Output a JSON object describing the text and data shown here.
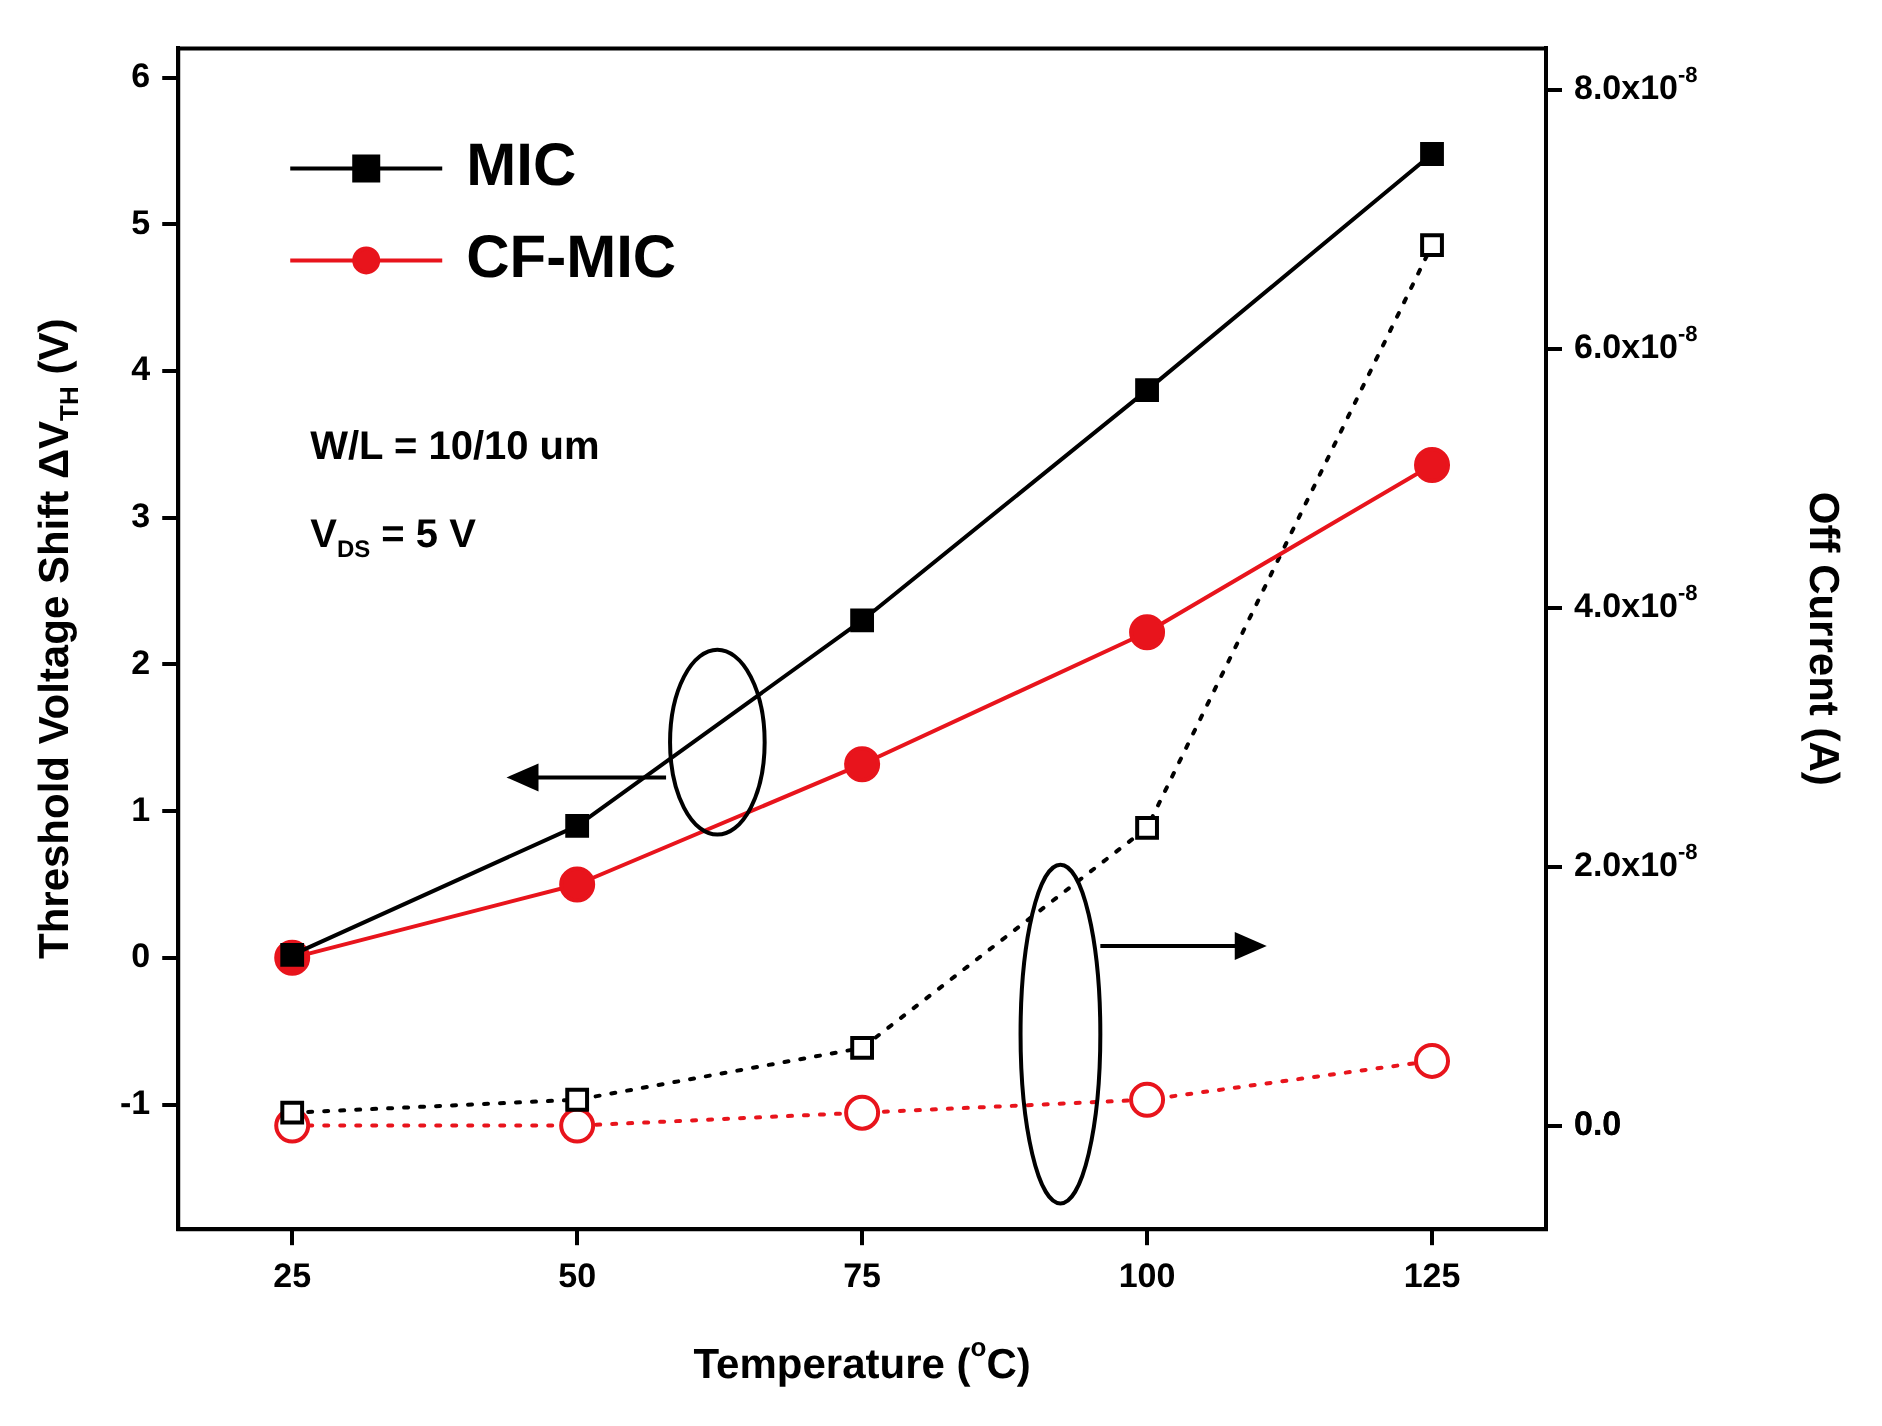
{
  "chart_data": {
    "type": "line",
    "xlabel": "Temperature ($^{o}$C)",
    "ylabel": "Threshold Voltage Shift ΔV$_{TH}$ (V)",
    "y2label": "Off Current (A)",
    "x": [
      25,
      50,
      75,
      100,
      125
    ],
    "xlim": [
      15,
      135
    ],
    "xticks": [
      25,
      50,
      75,
      100,
      125
    ],
    "ylim": [
      -1.85,
      6.2
    ],
    "yticks": [
      -1,
      0,
      1,
      2,
      3,
      4,
      5,
      6
    ],
    "y2lim": [
      -8e-09,
      8.32e-08
    ],
    "y2ticks": [
      {
        "value": 0,
        "label": "0.0"
      },
      {
        "value": 2e-08,
        "label": "2.0x10$^{-8}$"
      },
      {
        "value": 4e-08,
        "label": "4.0x10$^{-8}$"
      },
      {
        "value": 6e-08,
        "label": "6.0x10$^{-8}$"
      },
      {
        "value": 8e-08,
        "label": "8.0x10$^{-8}$"
      }
    ],
    "legend": "top left",
    "annotations": [
      "W/L = 10/10 um",
      "V$_{DS}$ = 5 V"
    ],
    "series": [
      {
        "name": "MIC",
        "color": "#000000",
        "marker": "square",
        "line_style": "solid",
        "values": [
          0.02,
          0.9,
          2.3,
          3.87,
          5.48
        ]
      },
      {
        "name": "CF-MIC",
        "color": "#e8141c",
        "marker": "circle",
        "line_style": "solid",
        "values": [
          0.0,
          0.5,
          1.32,
          2.22,
          3.36
        ]
      },
      {
        "color": "#000000",
        "marker": "square",
        "line_style": "dotted",
        "axis": "y2",
        "values": [
          1e-09,
          2e-09,
          6e-09,
          2.3e-08,
          6.8e-08
        ]
      },
      {
        "color": "#e8141c",
        "marker": "circle",
        "line_style": "dotted",
        "axis": "y2",
        "values": [
          0,
          0,
          1e-09,
          2e-09,
          5e-09
        ]
      }
    ]
  }
}
